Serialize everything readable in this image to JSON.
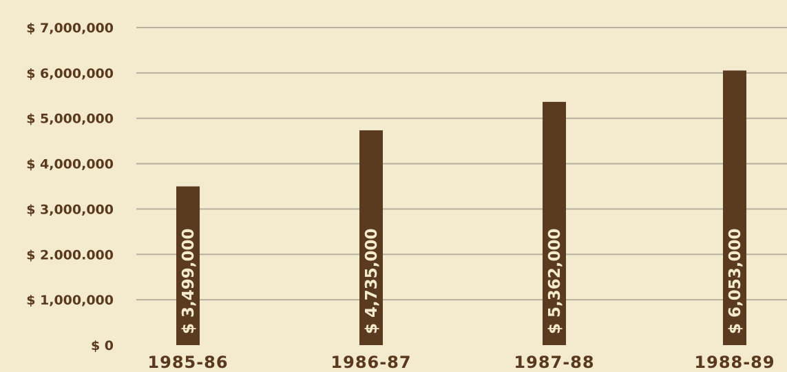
{
  "chart_data": {
    "type": "bar",
    "title": "",
    "xlabel": "",
    "ylabel": "",
    "categories": [
      "1985-86",
      "1986-87",
      "1987-88",
      "1988-89"
    ],
    "values": [
      3499000,
      4735000,
      5362000,
      6053000
    ],
    "data_labels": [
      "$ 3,499,000",
      "$ 4,735,000",
      "$ 5,362,000",
      "$ 6,053,000"
    ],
    "ylim": [
      0,
      7000000
    ],
    "yticks": [
      0,
      1000000,
      2000000,
      3000000,
      4000000,
      5000000,
      6000000,
      7000000
    ],
    "ytick_labels": [
      "$ 0",
      "$ 1,000,000",
      "$ 2.000.000",
      "$ 3,000,000",
      "$ 4,000,000",
      "$ 5,000,000",
      "$ 6,000,000",
      "$ 7,000,000"
    ],
    "grid": true,
    "colors": {
      "background": "#f4ebcf",
      "bar": "#5a3b1f",
      "grid": "#b6b0a0",
      "text": "#5a3a1e",
      "label_text": "#f4ebcf"
    }
  }
}
